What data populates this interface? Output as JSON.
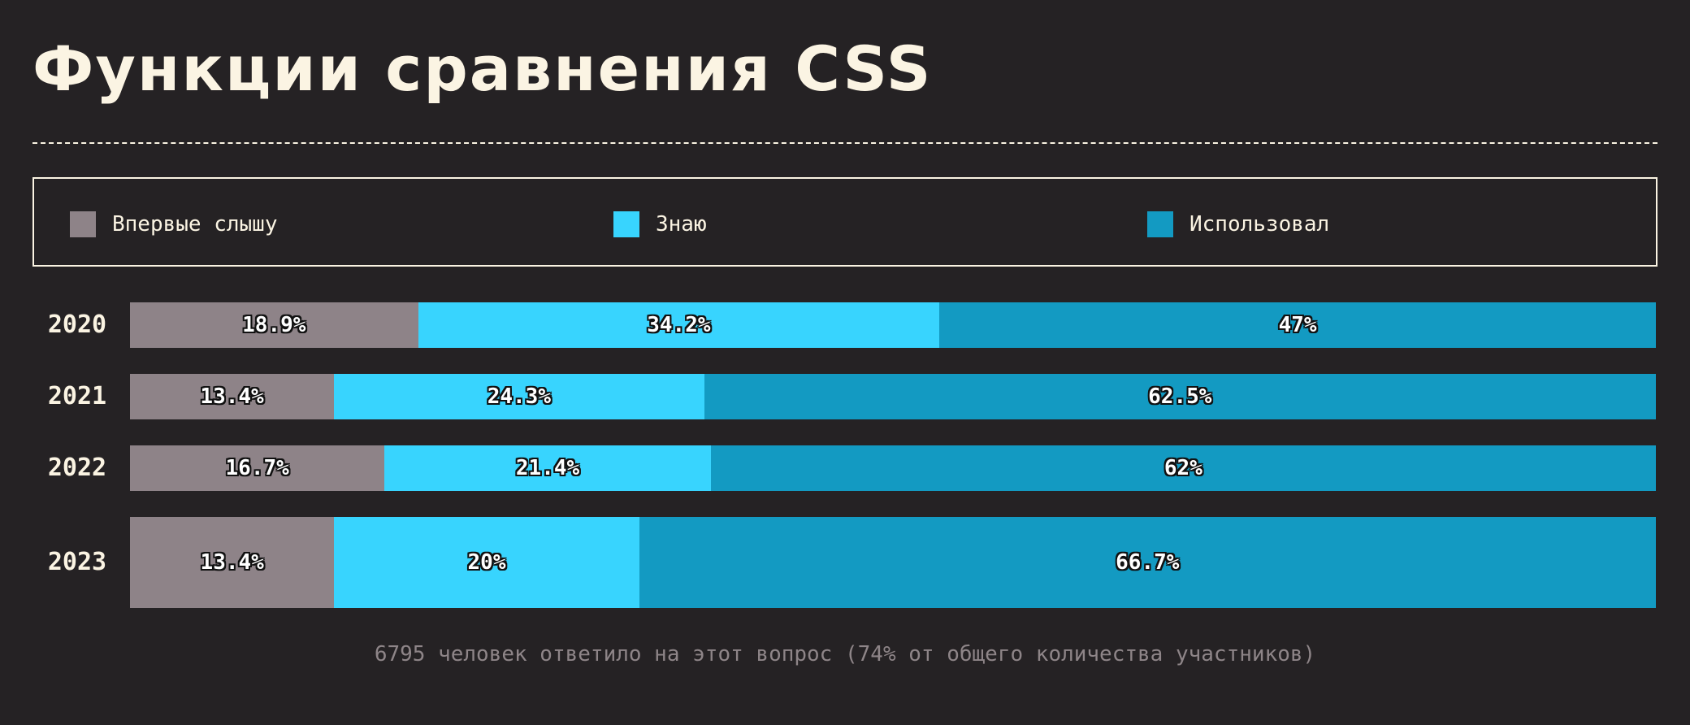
{
  "title": "Функции сравнения CSS",
  "legend": [
    {
      "label": "Впервые слышу",
      "color": "#8e8388"
    },
    {
      "label": "Знаю",
      "color": "#38d4fe"
    },
    {
      "label": "Использовал",
      "color": "#139ac2"
    }
  ],
  "footnote": "6795 человек ответило на этот вопрос (74% от общего количества участников)",
  "chart_data": {
    "type": "bar",
    "orientation": "horizontal",
    "stacked": true,
    "categories": [
      "2020",
      "2021",
      "2022",
      "2023"
    ],
    "series": [
      {
        "name": "Впервые слышу",
        "color": "#8e8388",
        "values": [
          18.9,
          13.4,
          16.7,
          13.4
        ],
        "labels": [
          "18.9%",
          "13.4%",
          "16.7%",
          "13.4%"
        ]
      },
      {
        "name": "Знаю",
        "color": "#38d4fe",
        "values": [
          34.2,
          24.3,
          21.4,
          20
        ],
        "labels": [
          "34.2%",
          "24.3%",
          "21.4%",
          "20%"
        ]
      },
      {
        "name": "Использовал",
        "color": "#139ac2",
        "values": [
          47,
          62.5,
          62,
          66.7
        ],
        "labels": [
          "47%",
          "62.5%",
          "62%",
          "66.7%"
        ]
      }
    ],
    "xlim": [
      0,
      100
    ],
    "grid": false,
    "legend_position": "top"
  }
}
